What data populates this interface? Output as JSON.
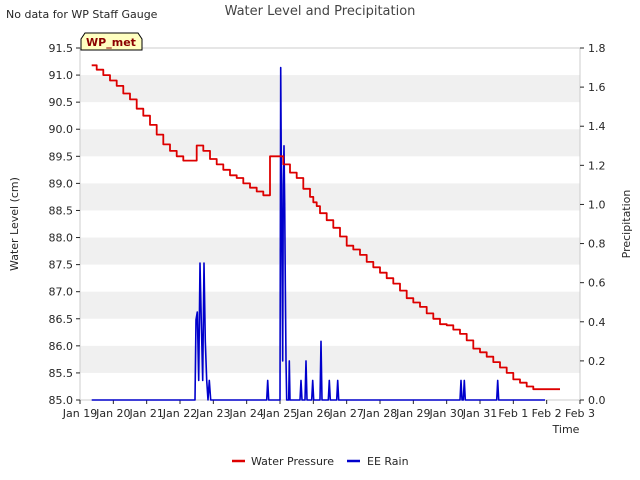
{
  "note": "No data for WP Staff Gauge",
  "station_box": "WP_met",
  "colors": {
    "water": "#dd0000",
    "rain": "#0000cc",
    "band": "#f0f0f0",
    "station_fill": "#ffffc0",
    "station_text": "#8b0000"
  },
  "chart_data": {
    "type": "line",
    "title": "Water Level and Precipitation",
    "xlabel": "Time",
    "ylabel_left": "Water Level (cm)",
    "ylabel_right": "Precipitation",
    "ylim_left": [
      85.0,
      91.5
    ],
    "ylim_right": [
      0.0,
      1.8
    ],
    "xlim": [
      0,
      15
    ],
    "x_tick_labels": [
      "Jan 19",
      "Jan 20",
      "Jan 21",
      "Jan 22",
      "Jan 23",
      "Jan 24",
      "Jan 25",
      "Jan 26",
      "Jan 27",
      "Jan 28",
      "Jan 29",
      "Jan 30",
      "Jan 31",
      "Feb 1",
      "Feb 2",
      "Feb 3"
    ],
    "y_tick_labels_left": [
      "85.0",
      "85.5",
      "86.0",
      "86.5",
      "87.0",
      "87.5",
      "88.0",
      "88.5",
      "89.0",
      "89.5",
      "90.0",
      "90.5",
      "91.0",
      "91.5"
    ],
    "y_tick_labels_right": [
      "0.0",
      "0.2",
      "0.4",
      "0.6",
      "0.8",
      "1.0",
      "1.2",
      "1.4",
      "1.6",
      "1.8"
    ],
    "grid": "horizontal bands",
    "legend_placement": "bottom-center",
    "series": [
      {
        "name": "Water Pressure",
        "axis": "left",
        "x": [
          0.35,
          0.5,
          0.7,
          0.9,
          1.1,
          1.3,
          1.5,
          1.7,
          1.9,
          2.1,
          2.3,
          2.5,
          2.7,
          2.9,
          3.1,
          3.3,
          3.5,
          3.7,
          3.9,
          4.1,
          4.3,
          4.5,
          4.7,
          4.9,
          5.1,
          5.3,
          5.5,
          5.7,
          5.9,
          6.1,
          6.3,
          6.5,
          6.7,
          6.9,
          7.0,
          7.1,
          7.2,
          7.4,
          7.6,
          7.8,
          8.0,
          8.2,
          8.4,
          8.6,
          8.8,
          9.0,
          9.2,
          9.4,
          9.6,
          9.8,
          10.0,
          10.2,
          10.4,
          10.6,
          10.8,
          11.0,
          11.2,
          11.4,
          11.6,
          11.8,
          12.0,
          12.2,
          12.4,
          12.6,
          12.8,
          13.0,
          13.2,
          13.4,
          13.6,
          13.8,
          14.0,
          14.2,
          14.4
        ],
        "y": [
          91.18,
          91.1,
          91.0,
          90.9,
          90.8,
          90.66,
          90.55,
          90.38,
          90.25,
          90.08,
          89.9,
          89.72,
          89.6,
          89.5,
          89.42,
          89.42,
          89.7,
          89.6,
          89.45,
          89.35,
          89.25,
          89.15,
          89.1,
          89.0,
          88.92,
          88.85,
          88.78,
          89.5,
          89.5,
          89.35,
          89.2,
          89.1,
          88.9,
          88.75,
          88.65,
          88.58,
          88.45,
          88.32,
          88.18,
          88.02,
          87.85,
          87.78,
          87.68,
          87.55,
          87.45,
          87.35,
          87.25,
          87.15,
          87.02,
          86.88,
          86.8,
          86.72,
          86.6,
          86.5,
          86.4,
          86.38,
          86.3,
          86.22,
          86.1,
          85.95,
          85.88,
          85.8,
          85.7,
          85.6,
          85.5,
          85.38,
          85.32,
          85.25,
          85.2,
          85.2,
          85.2,
          85.2,
          85.2
        ]
      },
      {
        "name": "EE Rain",
        "axis": "right",
        "x": [
          0.35,
          3.45,
          3.48,
          3.52,
          3.56,
          3.6,
          3.64,
          3.68,
          3.72,
          3.76,
          3.8,
          3.84,
          3.88,
          3.92,
          3.96,
          4.0,
          4.05,
          4.1,
          5.6,
          5.63,
          5.66,
          6.0,
          6.02,
          6.04,
          6.06,
          6.08,
          6.1,
          6.12,
          6.14,
          6.16,
          6.18,
          6.2,
          6.22,
          6.24,
          6.26,
          6.28,
          6.3,
          6.32,
          6.34,
          6.36,
          6.38,
          6.4,
          6.6,
          6.63,
          6.66,
          6.75,
          6.78,
          6.81,
          6.95,
          6.98,
          7.01,
          7.2,
          7.23,
          7.26,
          7.45,
          7.48,
          7.51,
          7.7,
          7.73,
          7.76,
          11.4,
          11.43,
          11.46,
          11.5,
          11.53,
          11.56,
          12.5,
          12.53,
          12.56,
          13.95
        ],
        "y": [
          0.0,
          0.0,
          0.41,
          0.45,
          0.1,
          0.7,
          0.4,
          0.1,
          0.7,
          0.3,
          0.1,
          0.0,
          0.1,
          0.0,
          0.0,
          0.0,
          0.0,
          0.0,
          0.0,
          0.1,
          0.0,
          0.0,
          1.7,
          1.2,
          0.7,
          0.2,
          1.1,
          1.3,
          1.0,
          0.6,
          0.2,
          0.0,
          0.0,
          0.0,
          0.0,
          0.2,
          0.0,
          0.0,
          0.0,
          0.0,
          0.0,
          0.0,
          0.0,
          0.1,
          0.0,
          0.0,
          0.2,
          0.0,
          0.0,
          0.1,
          0.0,
          0.0,
          0.3,
          0.0,
          0.0,
          0.1,
          0.0,
          0.0,
          0.1,
          0.0,
          0.0,
          0.1,
          0.0,
          0.0,
          0.1,
          0.0,
          0.0,
          0.1,
          0.0,
          0.0
        ]
      }
    ]
  }
}
